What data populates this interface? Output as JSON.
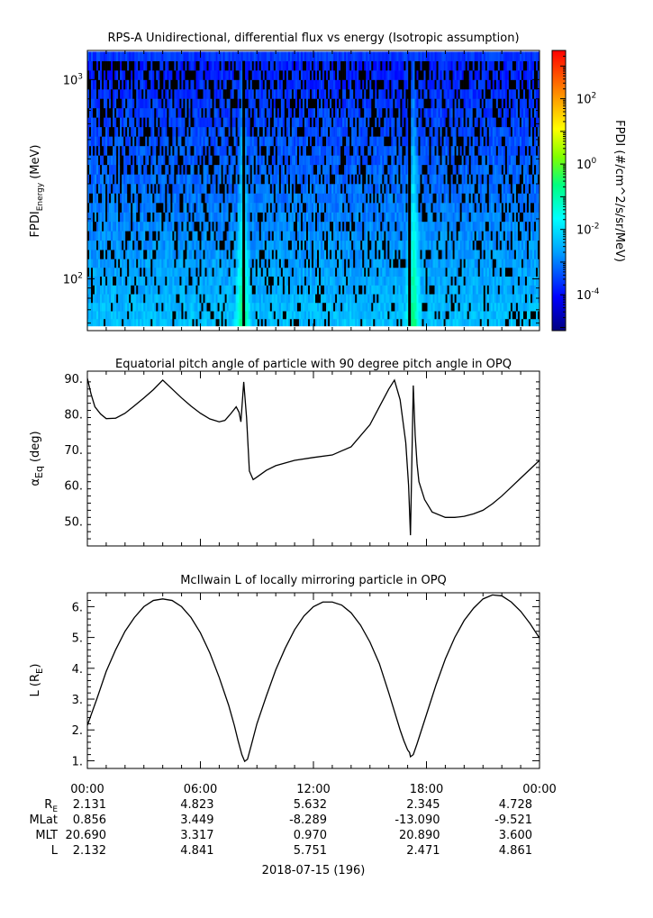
{
  "panels": [
    {
      "title": "RPS-A Unidirectional, differential flux vs energy (Isotropic assumption)",
      "ylabel_main": "FPDI",
      "ylabel_sub": "Energy",
      "ylabel_unit": "(MeV)",
      "yticks": [
        {
          "main": "10",
          "exp": "3"
        },
        {
          "main": "10",
          "exp": "2"
        }
      ],
      "colorbar": {
        "label": "FPDI (#/cm^2/s/sr/MeV)",
        "ticks": [
          {
            "main": "10",
            "exp": "2"
          },
          {
            "main": "10",
            "exp": "0"
          },
          {
            "main": "10",
            "exp": "-2"
          },
          {
            "main": "10",
            "exp": "-4"
          }
        ],
        "colors": [
          "#000080",
          "#0000ff",
          "#00a0ff",
          "#00ffff",
          "#00ff80",
          "#80ff00",
          "#ffff00",
          "#ff8000",
          "#ff0000"
        ]
      }
    },
    {
      "title": "Equatorial pitch angle of particle with 90 degree pitch angle in OPQ",
      "ylabel_main": "α",
      "ylabel_sub": "Eq",
      "ylabel_unit": "(deg)",
      "yticks": [
        "90.",
        "80.",
        "70.",
        "60.",
        "50."
      ]
    },
    {
      "title": "McIlwain L of locally mirroring particle in OPQ",
      "ylabel_main": "L (R",
      "ylabel_sub": "E",
      "ylabel_unit": ")",
      "yticks": [
        "6.",
        "5.",
        "4.",
        "3.",
        "2.",
        "1."
      ]
    }
  ],
  "xaxis": {
    "ticks": [
      "00:00",
      "06:00",
      "12:00",
      "18:00",
      "00:00"
    ],
    "date_label": "2018-07-15 (196)"
  },
  "ephemeris": {
    "row_labels": [
      "R",
      "MLat",
      "MLT",
      "L"
    ],
    "re_sub": "E",
    "rows": [
      [
        "2.131",
        "4.823",
        "5.632",
        "2.345",
        "4.728"
      ],
      [
        "0.856",
        "3.449",
        "-8.289",
        "-13.090",
        "-9.521"
      ],
      [
        "20.690",
        "3.317",
        "0.970",
        "20.890",
        "3.600"
      ],
      [
        "2.132",
        "4.841",
        "5.751",
        "2.471",
        "4.861"
      ]
    ]
  },
  "chart_data": [
    {
      "type": "heatmap",
      "title": "RPS-A Unidirectional, differential flux vs energy (Isotropic assumption)",
      "xlabel": "",
      "ylabel": "FPDI Energy (MeV)",
      "x_range_hours": [
        0,
        24
      ],
      "y_scale": "log",
      "ylim": [
        55,
        1400
      ],
      "colorbar_scale": "log",
      "colorbar_range": [
        8e-06,
        3000
      ],
      "colorbar_label": "FPDI (#/cm^2/s/sr/MeV)",
      "energy_channels_mev": [
        58,
        63,
        69,
        76,
        84,
        93,
        103,
        114,
        126,
        140,
        156,
        174,
        194,
        216,
        241,
        269,
        300,
        335,
        374,
        417,
        465,
        519,
        579,
        646,
        720,
        803,
        895,
        998,
        1113,
        1240,
        1380
      ],
      "features": [
        {
          "x_hour": 8.25,
          "description": "high-flux band, yellow-green at low energy, peaks near 1e-1"
        },
        {
          "x_hour": 17.3,
          "description": "high-flux band, yellow-green at low energy, peaks near 1e-1"
        }
      ],
      "data_gaps_hours": [
        8.3,
        17.1
      ]
    },
    {
      "type": "line",
      "title": "Equatorial pitch angle of particle with 90 degree pitch angle in OPQ",
      "ylabel": "αEq (deg)",
      "ylim": [
        43,
        92
      ],
      "x_hours": [
        0.0,
        0.2,
        0.4,
        0.7,
        1.0,
        1.5,
        2.0,
        2.5,
        3.0,
        3.5,
        4.0,
        4.5,
        5.0,
        5.5,
        6.0,
        6.5,
        7.0,
        7.3,
        7.6,
        7.9,
        8.05,
        8.15,
        8.3,
        8.45,
        8.6,
        8.8,
        9.0,
        9.5,
        10.0,
        11.0,
        12.0,
        13.0,
        14.0,
        15.0,
        15.5,
        16.0,
        16.3,
        16.6,
        16.9,
        17.05,
        17.15,
        17.3,
        17.4,
        17.5,
        17.6,
        17.9,
        18.3,
        19.0,
        19.5,
        20.0,
        20.5,
        21.0,
        21.5,
        22.0,
        22.5,
        23.0,
        23.5,
        24.0
      ],
      "values": [
        90.0,
        85.5,
        82.0,
        80.0,
        78.7,
        78.8,
        80.2,
        82.3,
        84.5,
        86.8,
        89.5,
        87.0,
        84.5,
        82.2,
        80.2,
        78.6,
        77.8,
        78.2,
        80.0,
        82.0,
        80.5,
        77.8,
        89.0,
        79.0,
        64.0,
        61.6,
        62.3,
        64.2,
        65.5,
        67.0,
        67.8,
        68.5,
        70.8,
        77.0,
        82.0,
        87.0,
        89.5,
        84.0,
        72.0,
        60.0,
        46.0,
        88.0,
        74.0,
        66.0,
        61.0,
        56.0,
        52.5,
        51.0,
        51.0,
        51.3,
        52.0,
        53.0,
        54.8,
        57.0,
        59.5,
        62.0,
        64.5,
        67.0
      ]
    },
    {
      "type": "line",
      "title": "McIlwain L of locally mirroring particle in OPQ",
      "ylabel": "L (RE)",
      "ylim": [
        0.75,
        6.45
      ],
      "x_hours": [
        0.0,
        0.5,
        1.0,
        1.5,
        2.0,
        2.5,
        3.0,
        3.5,
        4.0,
        4.5,
        5.0,
        5.5,
        6.0,
        6.5,
        7.0,
        7.5,
        7.8,
        8.0,
        8.2,
        8.35,
        8.5,
        8.7,
        9.0,
        9.5,
        10.0,
        10.5,
        11.0,
        11.5,
        12.0,
        12.5,
        13.0,
        13.5,
        14.0,
        14.5,
        15.0,
        15.5,
        16.0,
        16.3,
        16.6,
        16.8,
        17.0,
        17.1,
        17.15,
        17.3,
        17.5,
        18.0,
        18.5,
        19.0,
        19.5,
        20.0,
        20.5,
        21.0,
        21.5,
        22.0,
        22.5,
        23.0,
        23.5,
        24.0
      ],
      "values": [
        2.15,
        3.0,
        3.9,
        4.6,
        5.2,
        5.65,
        6.0,
        6.2,
        6.25,
        6.2,
        6.0,
        5.65,
        5.15,
        4.5,
        3.7,
        2.8,
        2.15,
        1.65,
        1.2,
        0.98,
        1.05,
        1.5,
        2.2,
        3.1,
        3.95,
        4.65,
        5.25,
        5.7,
        6.0,
        6.15,
        6.15,
        6.05,
        5.8,
        5.4,
        4.85,
        4.15,
        3.2,
        2.6,
        2.0,
        1.65,
        1.35,
        1.27,
        1.13,
        1.2,
        1.55,
        2.5,
        3.45,
        4.3,
        5.0,
        5.55,
        5.95,
        6.25,
        6.38,
        6.35,
        6.15,
        5.85,
        5.45,
        4.98
      ]
    }
  ]
}
